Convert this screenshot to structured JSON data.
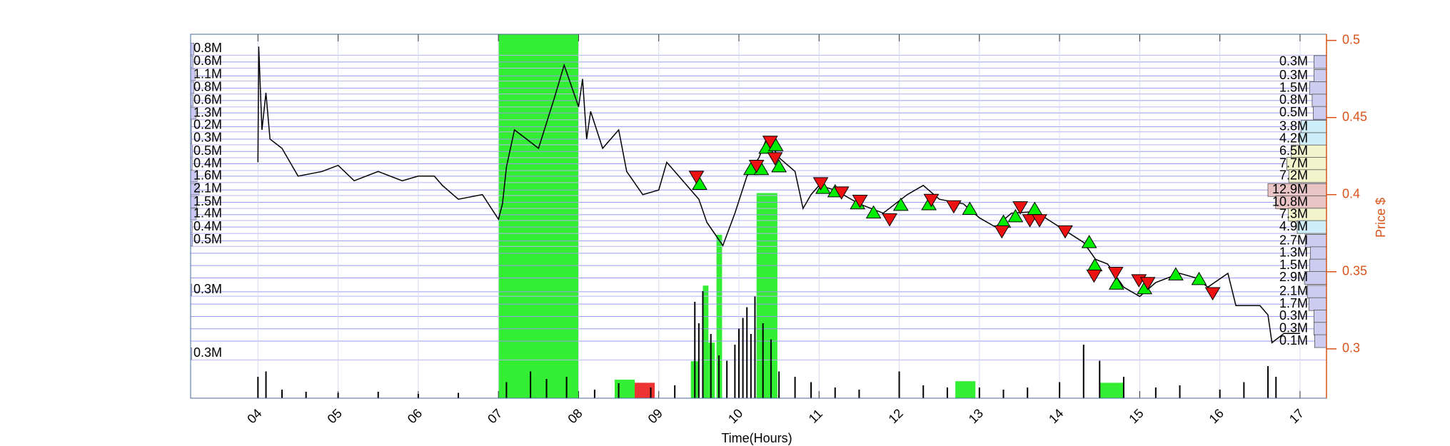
{
  "chart_data": {
    "type": "line",
    "xlabel": "Time(Hours)",
    "y2label": "Price $",
    "xlim": [
      3.16,
      17.33
    ],
    "xticks": [
      {
        "value": 4,
        "label": "04"
      },
      {
        "value": 5,
        "label": "05"
      },
      {
        "value": 6,
        "label": "06"
      },
      {
        "value": 7,
        "label": "07"
      },
      {
        "value": 8,
        "label": "08"
      },
      {
        "value": 9,
        "label": "09"
      },
      {
        "value": 10,
        "label": "10"
      },
      {
        "value": 11,
        "label": "11"
      },
      {
        "value": 12,
        "label": "12"
      },
      {
        "value": 13,
        "label": "13"
      },
      {
        "value": 14,
        "label": "14"
      },
      {
        "value": 15,
        "label": "15"
      },
      {
        "value": 16,
        "label": "16"
      },
      {
        "value": 17,
        "label": "17"
      }
    ],
    "y2lim": [
      0.268,
      0.504
    ],
    "y2ticks": [
      0.3,
      0.35,
      0.4,
      0.45,
      0.5
    ],
    "grid": true,
    "axis_color": "#d95319",
    "price": {
      "axis": "y2",
      "color": "#000000",
      "x": [
        4.0,
        4.01,
        4.05,
        4.1,
        4.15,
        4.3,
        4.5,
        4.8,
        5.0,
        5.2,
        5.5,
        5.8,
        6.0,
        6.2,
        6.3,
        6.5,
        6.8,
        7.0,
        7.05,
        7.1,
        7.2,
        7.35,
        7.5,
        7.7,
        7.82,
        8.0,
        8.05,
        8.1,
        8.15,
        8.3,
        8.5,
        8.6,
        8.8,
        9.0,
        9.1,
        9.3,
        9.5,
        9.6,
        9.8,
        9.95,
        10.1,
        10.25,
        10.35,
        10.5,
        10.7,
        10.8,
        10.9,
        11.0,
        11.2,
        11.5,
        11.8,
        12.1,
        12.3,
        12.5,
        12.8,
        13.0,
        13.2,
        13.4,
        13.7,
        14.0,
        14.3,
        14.45,
        14.6,
        14.8,
        15.0,
        15.2,
        15.5,
        15.7,
        15.85,
        16.1,
        16.2,
        16.5,
        16.6,
        16.65,
        16.8,
        17.0
      ],
      "values": [
        0.421,
        0.496,
        0.442,
        0.466,
        0.436,
        0.43,
        0.412,
        0.415,
        0.419,
        0.409,
        0.415,
        0.409,
        0.412,
        0.412,
        0.406,
        0.397,
        0.4,
        0.384,
        0.394,
        0.418,
        0.442,
        0.436,
        0.43,
        0.463,
        0.484,
        0.457,
        0.475,
        0.436,
        0.454,
        0.43,
        0.442,
        0.415,
        0.4,
        0.403,
        0.421,
        0.409,
        0.397,
        0.382,
        0.367,
        0.388,
        0.412,
        0.424,
        0.437,
        0.424,
        0.415,
        0.391,
        0.4,
        0.406,
        0.403,
        0.394,
        0.388,
        0.4,
        0.406,
        0.397,
        0.394,
        0.385,
        0.379,
        0.388,
        0.389,
        0.379,
        0.369,
        0.358,
        0.355,
        0.34,
        0.334,
        0.343,
        0.349,
        0.346,
        0.34,
        0.349,
        0.328,
        0.328,
        0.322,
        0.304,
        0.31,
        0.31
      ]
    },
    "buys": {
      "axis": "y2",
      "color": "#00ee00",
      "x": [
        9.51,
        10.15,
        10.28,
        10.34,
        10.46,
        10.5,
        11.05,
        11.2,
        11.48,
        11.68,
        12.02,
        12.37,
        12.88,
        13.3,
        13.45,
        13.69,
        14.37,
        14.44,
        14.71,
        15.06,
        15.45,
        15.74
      ],
      "values": [
        0.4066,
        0.4162,
        0.4162,
        0.43,
        0.4317,
        0.418,
        0.404,
        0.4018,
        0.394,
        0.388,
        0.393,
        0.3934,
        0.3904,
        0.382,
        0.3856,
        0.3904,
        0.3688,
        0.3538,
        0.3419,
        0.3389,
        0.3479,
        0.3449
      ]
    },
    "sells": {
      "axis": "y2",
      "color": "#ee1111",
      "x": [
        9.47,
        10.22,
        10.39,
        10.45,
        11.02,
        11.28,
        11.51,
        11.88,
        12.4,
        12.68,
        13.28,
        13.51,
        13.63,
        13.75,
        14.07,
        14.43,
        14.7,
        14.99,
        15.1,
        15.91
      ],
      "values": [
        0.412,
        0.4191,
        0.4347,
        0.424,
        0.4078,
        0.4018,
        0.3964,
        0.3844,
        0.397,
        0.3928,
        0.3766,
        0.3922,
        0.3838,
        0.3838,
        0.3766,
        0.3479,
        0.3497,
        0.3449,
        0.3431,
        0.3365
      ]
    },
    "volume": {
      "color": "#000000",
      "x": [
        4.0,
        4.1,
        4.3,
        4.6,
        5.0,
        5.5,
        6.0,
        6.5,
        7.1,
        7.4,
        7.6,
        7.85,
        8.2,
        8.5,
        8.9,
        9.2,
        9.45,
        9.5,
        9.55,
        9.65,
        9.75,
        9.85,
        9.95,
        10.0,
        10.05,
        10.1,
        10.15,
        10.2,
        10.3,
        10.4,
        10.5,
        10.7,
        10.9,
        11.2,
        11.5,
        12.0,
        12.3,
        12.6,
        13.0,
        13.3,
        13.6,
        14.0,
        14.3,
        14.5,
        14.8,
        15.2,
        15.5,
        16.0,
        16.3,
        16.6,
        16.7
      ],
      "values": [
        20,
        25,
        8,
        6,
        5,
        6,
        4,
        5,
        15,
        25,
        18,
        20,
        8,
        14,
        10,
        12,
        90,
        70,
        100,
        60,
        40,
        35,
        50,
        65,
        75,
        85,
        60,
        95,
        70,
        55,
        25,
        20,
        15,
        10,
        8,
        25,
        12,
        10,
        10,
        8,
        10,
        15,
        50,
        35,
        20,
        10,
        12,
        8,
        15,
        30,
        20
      ]
    },
    "blocks": [
      {
        "x0": 7.0,
        "x1": 8.0,
        "top": 0.504,
        "color": "#33ee33"
      },
      {
        "x0": 8.45,
        "x1": 8.7,
        "top": 0.28,
        "color": "#33ee33"
      },
      {
        "x0": 8.7,
        "x1": 8.95,
        "top": 0.278,
        "color": "#ee3333"
      },
      {
        "x0": 9.4,
        "x1": 9.5,
        "top": 0.292,
        "color": "#33ee33"
      },
      {
        "x0": 9.55,
        "x1": 9.62,
        "top": 0.341,
        "color": "#33ee33"
      },
      {
        "x0": 9.62,
        "x1": 9.7,
        "top": 0.304,
        "color": "#33ee33"
      },
      {
        "x0": 9.72,
        "x1": 9.79,
        "top": 0.374,
        "color": "#33ee33"
      },
      {
        "x0": 10.22,
        "x1": 10.48,
        "top": 0.401,
        "color": "#33ee33"
      },
      {
        "x0": 12.7,
        "x1": 12.95,
        "top": 0.279,
        "color": "#33ee33"
      },
      {
        "x0": 14.5,
        "x1": 14.8,
        "top": 0.278,
        "color": "#33ee33"
      }
    ],
    "left_profile": {
      "color": "#c8c8f0",
      "values": [
        800000,
        600000,
        1100000,
        800000,
        600000,
        1300000,
        200000,
        300000,
        500000,
        400000,
        1600000,
        2100000,
        1500000,
        1400000,
        400000,
        500000,
        300000,
        300000
      ],
      "value_labels": [
        "0.8M",
        "0.6M",
        "1.1M",
        "0.8M",
        "0.6M",
        "1.3M",
        "0.2M",
        "0.3M",
        "0.5M",
        "0.4M",
        "1.6M",
        "2.1M",
        "1.5M",
        "1.4M",
        "0.4M",
        "0.5M",
        "0.3M",
        "0.3M"
      ],
      "prices": [
        0.4946,
        0.4862,
        0.4778,
        0.4694,
        0.461,
        0.4527,
        0.4449,
        0.4365,
        0.4281,
        0.4198,
        0.412,
        0.4036,
        0.3952,
        0.3874,
        0.379,
        0.3706,
        0.3383,
        0.297
      ]
    },
    "right_profile": {
      "values": [
        300000,
        300000,
        1500000,
        800000,
        500000,
        3800000,
        4200000,
        6500000,
        7700000,
        7200000,
        12900000,
        10800000,
        7300000,
        4900000,
        2700000,
        1300000,
        1500000,
        2900000,
        2100000,
        1700000,
        300000,
        300000,
        100000
      ],
      "value_labels": [
        "0.3M",
        "0.3M",
        "1.5M",
        "0.8M",
        "0.5M",
        "3.8M",
        "4.2M",
        "6.5M",
        "7.7M",
        "7.2M",
        "12.9M",
        "10.8M",
        "7.3M",
        "4.9M",
        "2.7M",
        "1.3M",
        "1.5M",
        "2.9M",
        "2.1M",
        "1.7M",
        "0.3M",
        "0.3M",
        "0.1M"
      ],
      "prices": [
        0.486,
        0.477,
        0.469,
        0.461,
        0.453,
        0.444,
        0.436,
        0.428,
        0.42,
        0.412,
        0.403,
        0.395,
        0.387,
        0.379,
        0.37,
        0.362,
        0.354,
        0.346,
        0.337,
        0.329,
        0.321,
        0.313,
        0.305
      ],
      "colors": [
        "#ccccf0",
        "#ccccf0",
        "#ccccf0",
        "#ccccf0",
        "#ccccf0",
        "#cdeef8",
        "#cdeef8",
        "#f2f5cc",
        "#f2f5cc",
        "#f2f5cc",
        "#e8c4c4",
        "#e8c4c4",
        "#f2f5cc",
        "#cdeef8",
        "#ccccf0",
        "#ccccf0",
        "#ccccf0",
        "#ccccf0",
        "#ccccf0",
        "#ccccf0",
        "#ccccf0",
        "#ccccf0",
        "#ccccf0"
      ]
    }
  }
}
